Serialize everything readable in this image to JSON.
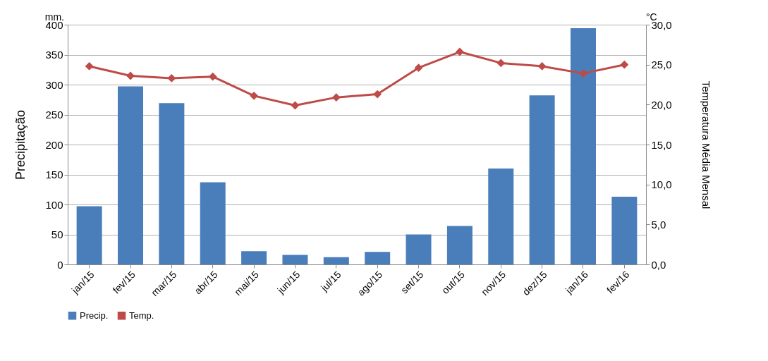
{
  "chart_data": {
    "type": "bar",
    "categories": [
      "jan/15",
      "fev/15",
      "mar/15",
      "abr/15",
      "mai/15",
      "jun/15",
      "jul/15",
      "ago/15",
      "set/15",
      "out/15",
      "nov/15",
      "dez/15",
      "jan/16",
      "fev/16"
    ],
    "series": [
      {
        "name": "Precip.",
        "color": "#4a7ebb",
        "values": [
          97,
          297,
          269,
          137,
          22,
          16,
          12,
          21,
          50,
          64,
          160,
          282,
          394,
          113
        ]
      },
      {
        "name": "Temp.",
        "type": "line",
        "axis": "y2",
        "color": "#be4b48",
        "marker": "diamond",
        "line_style": "solid",
        "values": [
          24.8,
          23.6,
          23.3,
          23.5,
          21.1,
          19.9,
          20.9,
          21.3,
          24.6,
          26.6,
          25.2,
          24.8,
          23.9,
          25.0
        ]
      }
    ],
    "ylabel": "Precipitação",
    "y2label": "Temperatura Média Mensal",
    "ylim": [
      0,
      400
    ],
    "yticks": [
      0,
      50,
      100,
      150,
      200,
      250,
      300,
      350,
      400
    ],
    "y2lim": [
      0,
      30
    ],
    "y2ticks": [
      {
        "value": 0,
        "label": "0,0"
      },
      {
        "value": 5,
        "label": "5,0"
      },
      {
        "value": 10,
        "label": "10,0"
      },
      {
        "value": 15,
        "label": "15,0"
      },
      {
        "value": 20,
        "label": "20,0"
      },
      {
        "value": 25,
        "label": "25,0"
      },
      {
        "value": 30,
        "label": "30,0"
      }
    ],
    "annotations": [
      "mm.",
      "°C"
    ],
    "grid": "y",
    "legend": "bottom"
  }
}
